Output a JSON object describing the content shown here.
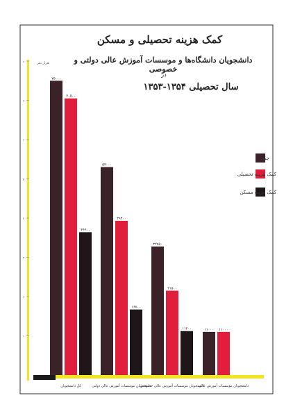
{
  "header": {
    "title": "کمک هزینه تحصیلی و مسکن",
    "subtitle": "دانشجویان دانشگاه‌ها و موسسات آموزش عالی دولتی و خصوصی",
    "connector": "در",
    "year_line": "سال تحصیلی ۱۳۵۴-۱۳۵۳"
  },
  "colors": {
    "total": "#3b2228",
    "tuition": "#e11f3c",
    "housing": "#1f1619",
    "axis": "#f2e51f",
    "frame": "#2b2b2b"
  },
  "chart_data": {
    "type": "bar",
    "ylabel": "هزار نفر",
    "ylim": [
      0,
      80000
    ],
    "grid": false,
    "legend": "right",
    "categories": [
      "کل دانشجویان",
      "دانشجویان موسسات آموزش عالی دولتی",
      "دانشجویان موسسات آموزش عالی خصوصی",
      "دانشجویان مؤسسات آموزش عالی"
    ],
    "series": [
      {
        "name": "جمع",
        "values": [
          75000,
          53000,
          32750,
          11000
        ],
        "labels": [
          "۷۵۰۰۰",
          "۵۳۰۰۰",
          "۳۲۷۵۰",
          "۱۱۰۰۰"
        ]
      },
      {
        "name": "کمک هزینه تحصیلی",
        "values": [
          70500,
          39300,
          21500,
          11000
        ],
        "labels": [
          "۷۰۵۰۰",
          "۳۹۳۰۰",
          "۲۱۵۰۰",
          "۱۱۰۰۰"
        ]
      },
      {
        "name": "کمک هزینه مسکن",
        "values": [
          36400,
          16700,
          11200,
          null
        ],
        "labels": [
          "۳۶۴۰۰",
          "۱۶۷۰۰",
          "۱۱۲۰۰",
          ""
        ]
      }
    ],
    "ytick_labels": [
      "۸۰",
      "۷۰",
      "۶۰",
      "۵۰",
      "۴۰",
      "۳۰",
      "۲۰",
      "۱۰"
    ]
  }
}
